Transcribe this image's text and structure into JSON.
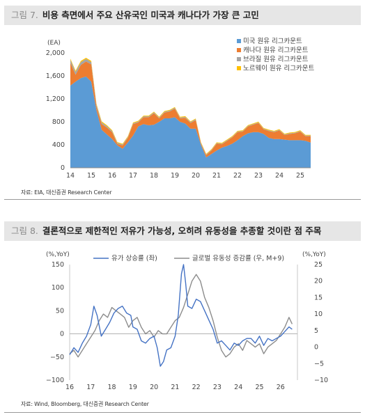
{
  "figure1": {
    "number": "그림 7.",
    "title": "비용 측면에서 주요 산유국인 미국과 캐나다가 가장 큰 고민",
    "source": "자료: EIA, 대신증권 Research Center"
  },
  "figure2": {
    "number": "그림 8.",
    "title": "결론적으로 제한적인 저유가 가능성, 오히려 유동성을 추종할 것이란 점 주목",
    "source": "자료: Wind, Bloomberg, 대신증권 Research Center"
  },
  "chart_data": [
    {
      "type": "area",
      "stacked": true,
      "ylabel": "(EA)",
      "ylim": [
        0,
        2000
      ],
      "yticks": [
        0,
        400,
        800,
        1200,
        1600,
        2000
      ],
      "ytick_labels": [
        "0",
        "400",
        "800",
        "1,200",
        "1,600",
        "2,000"
      ],
      "xticks": [
        14,
        15,
        16,
        17,
        18,
        19,
        20,
        21,
        22,
        23,
        24,
        25
      ],
      "legend_position": "top-right",
      "x": [
        2014.0,
        2014.25,
        2014.5,
        2014.75,
        2015.0,
        2015.25,
        2015.5,
        2015.75,
        2016.0,
        2016.25,
        2016.5,
        2016.75,
        2017.0,
        2017.25,
        2017.5,
        2017.75,
        2018.0,
        2018.25,
        2018.5,
        2018.75,
        2019.0,
        2019.25,
        2019.5,
        2019.75,
        2020.0,
        2020.25,
        2020.5,
        2020.75,
        2021.0,
        2021.25,
        2021.5,
        2021.75,
        2022.0,
        2022.25,
        2022.5,
        2022.75,
        2023.0,
        2023.25,
        2023.5,
        2023.75,
        2024.0,
        2024.25,
        2024.5,
        2024.75,
        2025.0,
        2025.25,
        2025.5
      ],
      "series": [
        {
          "name": "미국 원유 리그카운트",
          "color": "#5b9bd5",
          "values": [
            1430,
            1500,
            1560,
            1590,
            1500,
            1000,
            660,
            580,
            500,
            390,
            330,
            440,
            560,
            720,
            760,
            740,
            750,
            800,
            860,
            860,
            880,
            800,
            770,
            680,
            680,
            400,
            180,
            240,
            300,
            350,
            380,
            420,
            480,
            550,
            600,
            620,
            620,
            590,
            520,
            500,
            500,
            490,
            480,
            480,
            480,
            470,
            440
          ]
        },
        {
          "name": "캐나다 원유 리그카운트",
          "color": "#ed7d31",
          "values": [
            400,
            120,
            230,
            260,
            300,
            60,
            100,
            120,
            120,
            25,
            60,
            80,
            200,
            70,
            120,
            140,
            200,
            60,
            100,
            120,
            150,
            60,
            100,
            100,
            150,
            20,
            40,
            60,
            120,
            60,
            90,
            110,
            140,
            80,
            120,
            130,
            160,
            80,
            120,
            120,
            150,
            80,
            110,
            120,
            150,
            80,
            110
          ]
        },
        {
          "name": "브라질 원유 리그카운트",
          "color": "#a5a5a5",
          "values": [
            50,
            50,
            50,
            45,
            40,
            35,
            30,
            25,
            20,
            18,
            15,
            15,
            15,
            15,
            15,
            15,
            15,
            15,
            15,
            15,
            15,
            15,
            15,
            15,
            15,
            12,
            10,
            10,
            10,
            10,
            10,
            10,
            10,
            10,
            10,
            10,
            10,
            10,
            10,
            10,
            10,
            10,
            10,
            10,
            10,
            10,
            10
          ]
        },
        {
          "name": "노르웨이 원유 리그카운트",
          "color": "#ffc000",
          "values": [
            20,
            20,
            20,
            20,
            20,
            18,
            17,
            16,
            15,
            14,
            13,
            13,
            13,
            13,
            13,
            13,
            13,
            13,
            13,
            13,
            13,
            13,
            13,
            13,
            13,
            13,
            13,
            13,
            13,
            13,
            13,
            13,
            13,
            13,
            13,
            13,
            13,
            13,
            13,
            13,
            13,
            13,
            13,
            13,
            13,
            13,
            13
          ]
        }
      ]
    },
    {
      "type": "line",
      "ylabel_left": "(%,YoY)",
      "ylabel_right": "(%,YoY)",
      "ylim_left": [
        -100,
        150
      ],
      "ylim_right": [
        -10,
        25
      ],
      "yticks_left": [
        -100,
        -50,
        0,
        50,
        100,
        150
      ],
      "ytick_labels_left": [
        "−100",
        "−50",
        "0",
        "50",
        "100",
        "150"
      ],
      "yticks_right": [
        -10,
        -5,
        0,
        5,
        10,
        15,
        20,
        25
      ],
      "ytick_labels_right": [
        "−10",
        "−5",
        "0",
        "5",
        "10",
        "15",
        "20",
        "25"
      ],
      "xticks": [
        16,
        17,
        18,
        19,
        20,
        21,
        22,
        23,
        24,
        25,
        26
      ],
      "xlim": [
        2016,
        2026.8
      ],
      "legend_position": "top",
      "series": [
        {
          "name": "유가 상승률 (좌)",
          "axis": "left",
          "color": "#4472c4",
          "x": [
            2016.0,
            2016.2,
            2016.4,
            2016.6,
            2016.8,
            2017.0,
            2017.15,
            2017.3,
            2017.5,
            2017.7,
            2017.9,
            2018.1,
            2018.3,
            2018.5,
            2018.7,
            2018.9,
            2019.0,
            2019.2,
            2019.4,
            2019.6,
            2019.8,
            2020.0,
            2020.15,
            2020.3,
            2020.45,
            2020.6,
            2020.8,
            2021.0,
            2021.15,
            2021.3,
            2021.4,
            2021.5,
            2021.6,
            2021.8,
            2022.0,
            2022.2,
            2022.4,
            2022.6,
            2022.8,
            2023.0,
            2023.2,
            2023.4,
            2023.6,
            2023.8,
            2024.0,
            2024.2,
            2024.4,
            2024.6,
            2024.8,
            2025.0,
            2025.2,
            2025.4,
            2025.6,
            2025.8,
            2026.0,
            2026.2,
            2026.4,
            2026.55
          ],
          "values": [
            -45,
            -30,
            -40,
            -20,
            -5,
            20,
            60,
            40,
            -5,
            10,
            25,
            45,
            55,
            60,
            45,
            40,
            15,
            10,
            -15,
            -20,
            -10,
            -5,
            -30,
            -70,
            -60,
            -35,
            -30,
            -5,
            40,
            130,
            150,
            110,
            60,
            55,
            75,
            70,
            50,
            30,
            10,
            -20,
            -15,
            -25,
            -35,
            -20,
            -25,
            -15,
            -10,
            -10,
            -20,
            -5,
            -25,
            -10,
            -15,
            -10,
            -5,
            5,
            15,
            10
          ]
        },
        {
          "name": "글로벌 유동성 증감률 (우, M+9)",
          "axis": "right",
          "color": "#8c8c8c",
          "x": [
            2016.0,
            2016.2,
            2016.4,
            2016.6,
            2016.8,
            2017.0,
            2017.2,
            2017.4,
            2017.6,
            2017.8,
            2018.0,
            2018.2,
            2018.4,
            2018.6,
            2018.8,
            2019.0,
            2019.2,
            2019.4,
            2019.6,
            2019.8,
            2020.0,
            2020.2,
            2020.4,
            2020.6,
            2020.8,
            2021.0,
            2021.2,
            2021.4,
            2021.6,
            2021.8,
            2022.0,
            2022.2,
            2022.4,
            2022.6,
            2022.8,
            2023.0,
            2023.2,
            2023.4,
            2023.6,
            2023.8,
            2024.0,
            2024.2,
            2024.4,
            2024.6,
            2024.8,
            2025.0,
            2025.2,
            2025.4,
            2025.6,
            2025.8,
            2026.0,
            2026.2,
            2026.4,
            2026.55
          ],
          "values": [
            -2,
            -1,
            -3,
            -1,
            1,
            3,
            5,
            8,
            10,
            9,
            12,
            11,
            10,
            9,
            6,
            8,
            9,
            6,
            4,
            5,
            3,
            5,
            4,
            4,
            6,
            8,
            9,
            12,
            16,
            20,
            22,
            20,
            15,
            12,
            8,
            3,
            -1,
            -3,
            -2,
            0,
            1,
            -1,
            2,
            1,
            0,
            1,
            -2,
            0,
            1,
            2,
            4,
            6,
            9,
            7
          ]
        }
      ]
    }
  ]
}
